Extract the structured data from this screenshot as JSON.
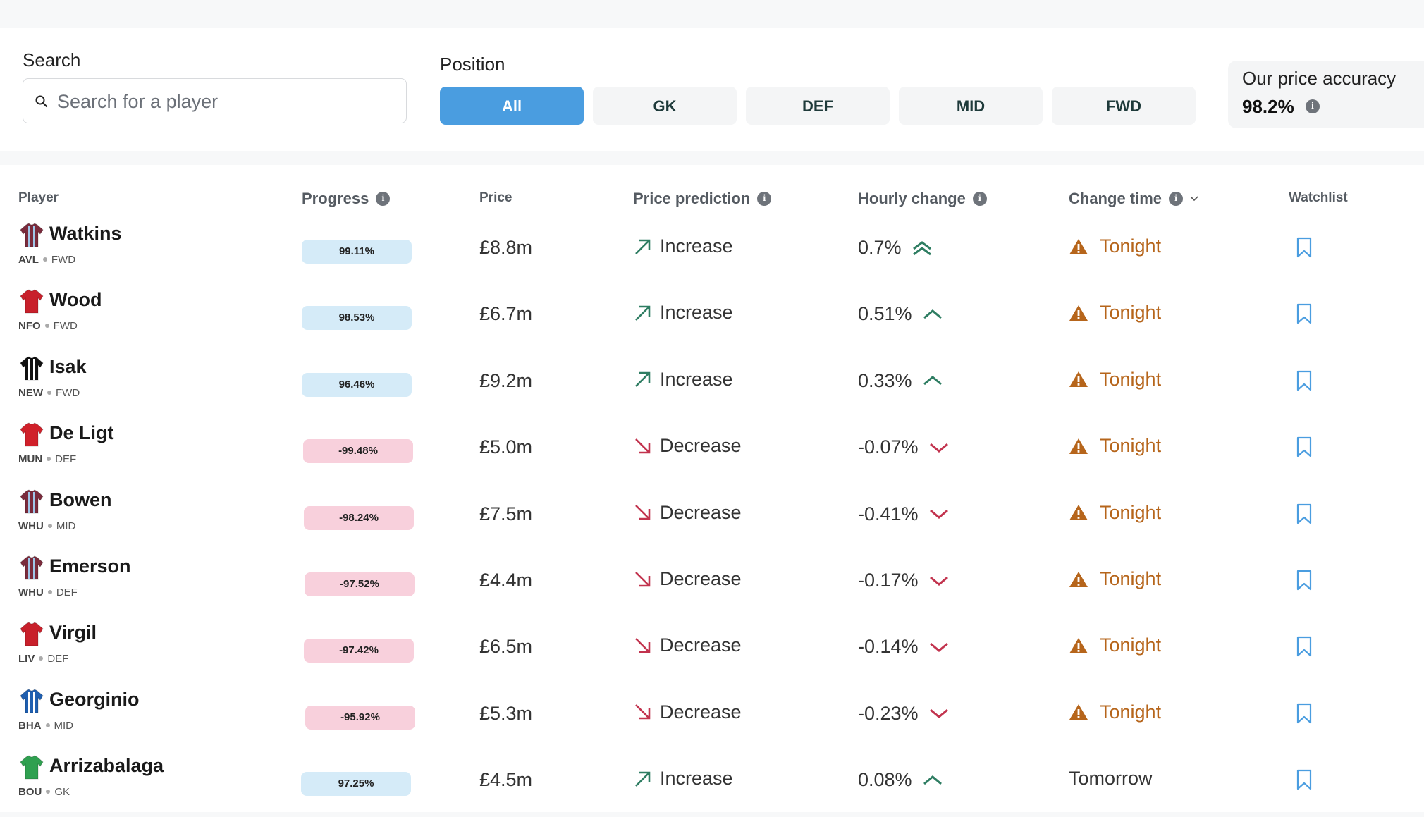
{
  "search": {
    "label": "Search",
    "placeholder": "Search for a player"
  },
  "position": {
    "label": "Position",
    "options": [
      "All",
      "GK",
      "DEF",
      "MID",
      "FWD"
    ],
    "selected": "All"
  },
  "accuracy": {
    "title": "Our price accuracy",
    "value": "98.2%"
  },
  "table": {
    "headers": {
      "player": "Player",
      "progress": "Progress",
      "price": "Price",
      "prediction": "Price prediction",
      "hourly": "Hourly change",
      "change_time": "Change time",
      "watchlist": "Watchlist"
    },
    "rows": [
      {
        "name": "Watkins",
        "team": "AVL",
        "pos": "FWD",
        "kit": "#7a2b3c",
        "kit2": "#9fc6e8",
        "progress": "99.11%",
        "price": "£8.8m",
        "prediction": "Increase",
        "hourly": "0.7%",
        "hourly_icon": "double-chevron-up-icon",
        "change_time": "Tonight",
        "warn": true
      },
      {
        "name": "Wood",
        "team": "NFO",
        "pos": "FWD",
        "kit": "#c8202b",
        "kit2": "#c8202b",
        "progress": "98.53%",
        "price": "£6.7m",
        "prediction": "Increase",
        "hourly": "0.51%",
        "hourly_icon": "chevron-up-icon",
        "change_time": "Tonight",
        "warn": true
      },
      {
        "name": "Isak",
        "team": "NEW",
        "pos": "FWD",
        "kit": "#111111",
        "kit2": "#ffffff",
        "progress": "96.46%",
        "price": "£9.2m",
        "prediction": "Increase",
        "hourly": "0.33%",
        "hourly_icon": "chevron-up-icon",
        "change_time": "Tonight",
        "warn": true
      },
      {
        "name": "De Ligt",
        "team": "MUN",
        "pos": "DEF",
        "kit": "#d0202a",
        "kit2": "#d0202a",
        "progress": "-99.48%",
        "price": "£5.0m",
        "prediction": "Decrease",
        "hourly": "-0.07%",
        "hourly_icon": "chevron-down-icon",
        "change_time": "Tonight",
        "warn": true
      },
      {
        "name": "Bowen",
        "team": "WHU",
        "pos": "MID",
        "kit": "#7a2b3c",
        "kit2": "#9fc6e8",
        "progress": "-98.24%",
        "price": "£7.5m",
        "prediction": "Decrease",
        "hourly": "-0.41%",
        "hourly_icon": "chevron-down-icon",
        "change_time": "Tonight",
        "warn": true
      },
      {
        "name": "Emerson",
        "team": "WHU",
        "pos": "DEF",
        "kit": "#7a2b3c",
        "kit2": "#9fc6e8",
        "progress": "-97.52%",
        "price": "£4.4m",
        "prediction": "Decrease",
        "hourly": "-0.17%",
        "hourly_icon": "chevron-down-icon",
        "change_time": "Tonight",
        "warn": true
      },
      {
        "name": "Virgil",
        "team": "LIV",
        "pos": "DEF",
        "kit": "#c8202b",
        "kit2": "#c8202b",
        "progress": "-97.42%",
        "price": "£6.5m",
        "prediction": "Decrease",
        "hourly": "-0.14%",
        "hourly_icon": "chevron-down-icon",
        "change_time": "Tonight",
        "warn": true
      },
      {
        "name": "Georginio",
        "team": "BHA",
        "pos": "MID",
        "kit": "#1f5fb0",
        "kit2": "#ffffff",
        "progress": "-95.92%",
        "price": "£5.3m",
        "prediction": "Decrease",
        "hourly": "-0.23%",
        "hourly_icon": "chevron-down-icon",
        "change_time": "Tonight",
        "warn": true
      },
      {
        "name": "Arrizabalaga",
        "team": "BOU",
        "pos": "GK",
        "kit": "#2fa050",
        "kit2": "#2fa050",
        "progress": "97.25%",
        "price": "£4.5m",
        "prediction": "Increase",
        "hourly": "0.08%",
        "hourly_icon": "chevron-up-icon",
        "change_time": "Tomorrow",
        "warn": false
      }
    ]
  },
  "colors": {
    "accent": "#4a9de0",
    "increase": "#2e7d62",
    "decrease": "#c2334e",
    "warning": "#b6651b"
  }
}
